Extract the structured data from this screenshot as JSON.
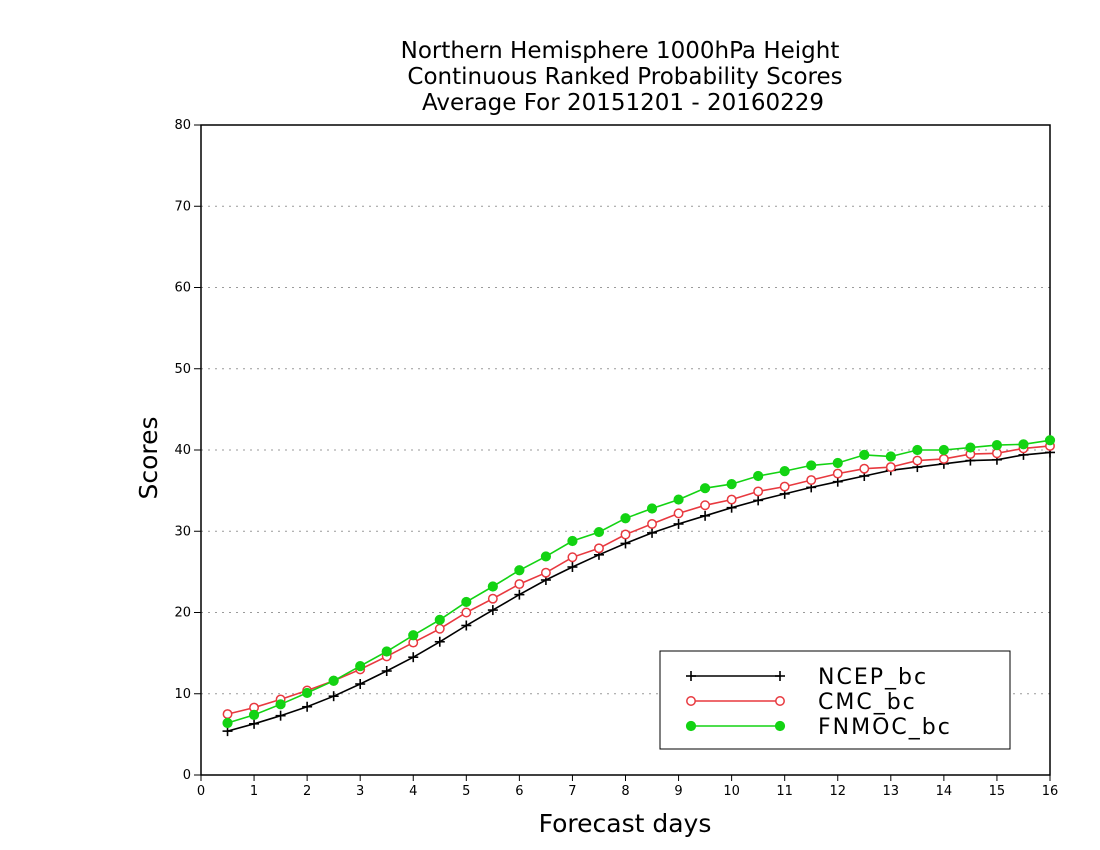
{
  "chart_data": {
    "type": "line",
    "title_lines": [
      "Northern Hemisphere 1000hPa Height",
      "Continuous Ranked Probability Scores",
      "Average For 20151201 - 20160229"
    ],
    "xlabel": "Forecast days",
    "ylabel": "Scores",
    "xlim": [
      0,
      16
    ],
    "ylim": [
      0,
      80
    ],
    "x_ticks": [
      "0",
      "1",
      "2",
      "3",
      "4",
      "5",
      "6",
      "7",
      "8",
      "9",
      "10",
      "11",
      "12",
      "13",
      "14",
      "15",
      "16"
    ],
    "y_ticks": [
      "0",
      "10",
      "20",
      "30",
      "40",
      "50",
      "60",
      "70",
      "80"
    ],
    "grid": "horizontal-dotted",
    "legend_position": "bottom-right",
    "x": [
      0.5,
      1,
      1.5,
      2,
      2.5,
      3,
      3.5,
      4,
      4.5,
      5,
      5.5,
      6,
      6.5,
      7,
      7.5,
      8,
      8.5,
      9,
      9.5,
      10,
      10.5,
      11,
      11.5,
      12,
      12.5,
      13,
      13.5,
      14,
      14.5,
      15,
      15.5,
      16
    ],
    "series": [
      {
        "name": "NCEP_bc",
        "color": "#000000",
        "marker": "plus",
        "values": [
          5.4,
          6.3,
          7.3,
          8.4,
          9.7,
          11.2,
          12.8,
          14.5,
          16.4,
          18.4,
          20.3,
          22.2,
          24.0,
          25.6,
          27.1,
          28.5,
          29.8,
          30.9,
          31.9,
          32.9,
          33.8,
          34.6,
          35.4,
          36.1,
          36.8,
          37.5,
          37.9,
          38.3,
          38.7,
          38.8,
          39.4,
          39.7
        ]
      },
      {
        "name": "CMC_bc",
        "color": "#e8393f",
        "marker": "open-circle",
        "values": [
          7.5,
          8.3,
          9.3,
          10.4,
          11.6,
          13.0,
          14.6,
          16.3,
          18.0,
          20.0,
          21.7,
          23.5,
          24.9,
          26.8,
          27.9,
          29.6,
          30.9,
          32.2,
          33.2,
          33.9,
          34.9,
          35.5,
          36.3,
          37.1,
          37.7,
          37.9,
          38.7,
          38.9,
          39.5,
          39.6,
          40.2,
          40.5
        ]
      },
      {
        "name": "FNMOC_bc",
        "color": "#13d313",
        "marker": "filled-circle",
        "values": [
          6.4,
          7.4,
          8.7,
          10.1,
          11.6,
          13.4,
          15.2,
          17.2,
          19.1,
          21.3,
          23.2,
          25.2,
          26.9,
          28.8,
          29.9,
          31.6,
          32.8,
          33.9,
          35.3,
          35.8,
          36.8,
          37.4,
          38.1,
          38.4,
          39.4,
          39.2,
          40.0,
          40.0,
          40.3,
          40.6,
          40.7,
          41.2
        ]
      }
    ]
  }
}
